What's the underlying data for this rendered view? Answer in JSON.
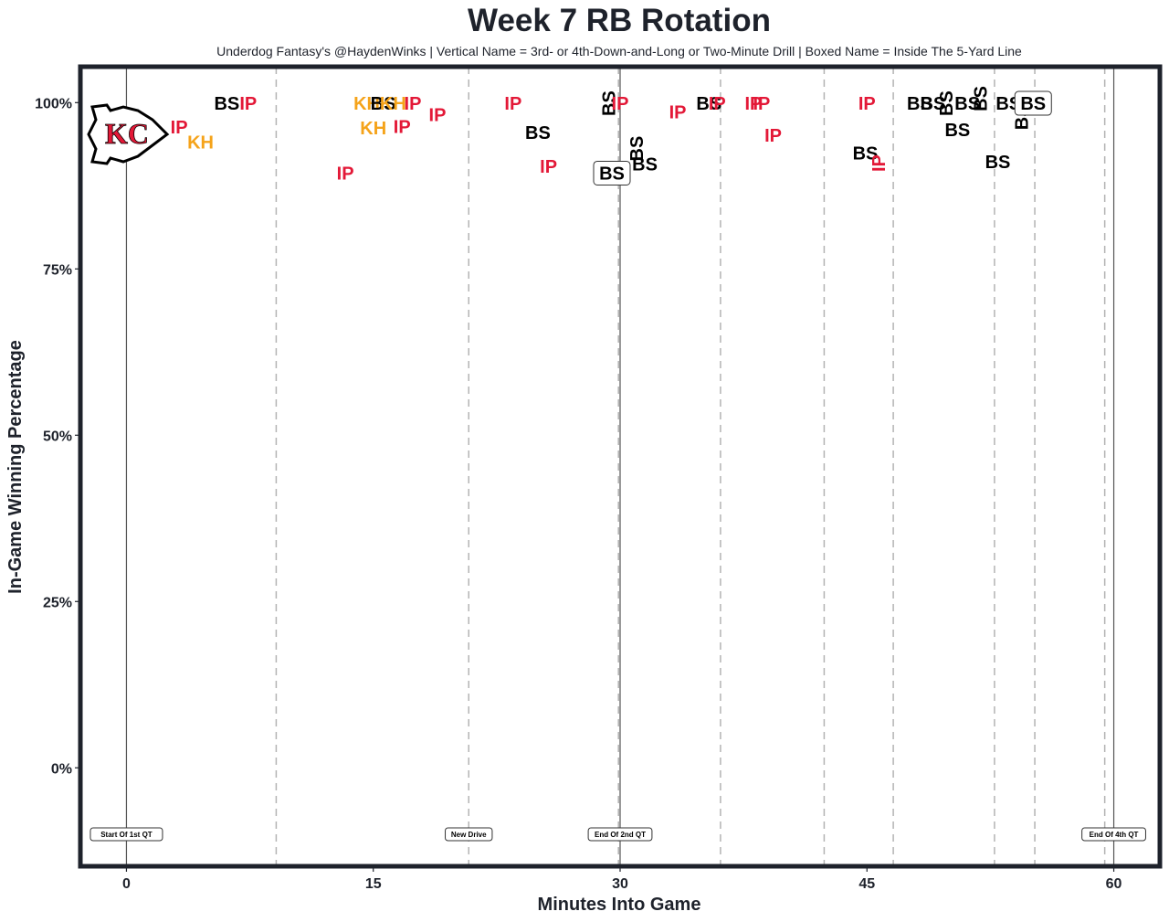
{
  "chart_data": {
    "type": "scatter",
    "title": "Week 7 RB Rotation",
    "subtitle": "Underdog Fantasy's @HaydenWinks | Vertical Name = 3rd- or 4th-Down-and-Long or Two-Minute Drill | Boxed Name = Inside The 5-Yard Line",
    "xlabel": "Minutes Into Game",
    "ylabel": "In-Game Winning Percentage",
    "xlim": [
      -2.8,
      62.8
    ],
    "ylim": [
      -14.8,
      105.4
    ],
    "x_ticks": [
      0,
      15,
      30,
      45,
      60
    ],
    "x_tick_labels": [
      "0",
      "15",
      "30",
      "45",
      "60"
    ],
    "y_ticks": [
      0,
      25,
      50,
      75,
      100
    ],
    "y_tick_labels": [
      "0%",
      "25%",
      "50%",
      "75%",
      "100%"
    ],
    "grid": false,
    "team_logo": "kansas-city-chiefs-logo",
    "player_colors": {
      "BS": "#000000",
      "IP": "#e31837",
      "KH": "#f5a31a"
    },
    "quarter_lines": [
      {
        "x": 0,
        "label": "Start Of 1st QT"
      },
      {
        "x": 30,
        "label": "End Of 2nd QT"
      },
      {
        "x": 60,
        "label": "End Of 4th QT"
      }
    ],
    "drive_lines": [
      {
        "x": 9.1
      },
      {
        "x": 20.8,
        "label": "New Drive"
      },
      {
        "x": 29.9
      },
      {
        "x": 36.1
      },
      {
        "x": 42.4
      },
      {
        "x": 46.6
      },
      {
        "x": 52.75
      },
      {
        "x": 55.2
      },
      {
        "x": 59.45
      }
    ],
    "points": [
      {
        "player": "IP",
        "x": 3.2,
        "y": 96.3,
        "vertical": false,
        "boxed": false
      },
      {
        "player": "KH",
        "x": 4.5,
        "y": 94.1,
        "vertical": false,
        "boxed": false
      },
      {
        "player": "BS",
        "x": 6.1,
        "y": 99.9,
        "vertical": false,
        "boxed": false
      },
      {
        "player": "IP",
        "x": 7.4,
        "y": 99.9,
        "vertical": false,
        "boxed": false
      },
      {
        "player": "IP",
        "x": 13.3,
        "y": 89.4,
        "vertical": false,
        "boxed": false
      },
      {
        "player": "KH",
        "x": 14.6,
        "y": 99.9,
        "vertical": false,
        "boxed": false
      },
      {
        "player": "KH",
        "x": 15.0,
        "y": 96.2,
        "vertical": false,
        "boxed": false
      },
      {
        "player": "BS",
        "x": 15.6,
        "y": 99.9,
        "vertical": false,
        "boxed": false
      },
      {
        "player": "KH",
        "x": 16.2,
        "y": 99.9,
        "vertical": false,
        "boxed": false
      },
      {
        "player": "IP",
        "x": 16.75,
        "y": 96.4,
        "vertical": false,
        "boxed": false
      },
      {
        "player": "IP",
        "x": 17.4,
        "y": 99.9,
        "vertical": false,
        "boxed": false
      },
      {
        "player": "IP",
        "x": 18.9,
        "y": 98.2,
        "vertical": false,
        "boxed": false
      },
      {
        "player": "IP",
        "x": 23.5,
        "y": 99.9,
        "vertical": false,
        "boxed": false
      },
      {
        "player": "BS",
        "x": 25.0,
        "y": 95.5,
        "vertical": false,
        "boxed": false
      },
      {
        "player": "IP",
        "x": 25.65,
        "y": 90.4,
        "vertical": false,
        "boxed": false
      },
      {
        "player": "BS",
        "x": 29.3,
        "y": 99.9,
        "vertical": true,
        "boxed": false
      },
      {
        "player": "BS",
        "x": 29.5,
        "y": 89.4,
        "vertical": false,
        "boxed": true
      },
      {
        "player": "IP",
        "x": 30.0,
        "y": 99.9,
        "vertical": false,
        "boxed": false
      },
      {
        "player": "BS",
        "x": 31.0,
        "y": 93.1,
        "vertical": true,
        "boxed": false
      },
      {
        "player": "BS",
        "x": 31.5,
        "y": 90.8,
        "vertical": false,
        "boxed": false
      },
      {
        "player": "IP",
        "x": 33.5,
        "y": 98.6,
        "vertical": false,
        "boxed": false
      },
      {
        "player": "BS",
        "x": 35.4,
        "y": 99.9,
        "vertical": false,
        "boxed": false
      },
      {
        "player": "IP",
        "x": 35.9,
        "y": 99.9,
        "vertical": false,
        "boxed": false
      },
      {
        "player": "IP",
        "x": 38.1,
        "y": 99.9,
        "vertical": false,
        "boxed": false
      },
      {
        "player": "IP",
        "x": 38.6,
        "y": 99.9,
        "vertical": false,
        "boxed": false
      },
      {
        "player": "IP",
        "x": 39.3,
        "y": 95.1,
        "vertical": false,
        "boxed": false
      },
      {
        "player": "BS",
        "x": 44.9,
        "y": 92.4,
        "vertical": false,
        "boxed": false
      },
      {
        "player": "IP",
        "x": 45.0,
        "y": 99.9,
        "vertical": false,
        "boxed": false
      },
      {
        "player": "IP",
        "x": 45.7,
        "y": 90.9,
        "vertical": true,
        "boxed": false
      },
      {
        "player": "BS",
        "x": 48.2,
        "y": 99.9,
        "vertical": false,
        "boxed": false
      },
      {
        "player": "BS",
        "x": 49.0,
        "y": 99.9,
        "vertical": false,
        "boxed": false
      },
      {
        "player": "BS",
        "x": 49.8,
        "y": 99.9,
        "vertical": true,
        "boxed": false
      },
      {
        "player": "BS",
        "x": 50.5,
        "y": 95.9,
        "vertical": false,
        "boxed": false
      },
      {
        "player": "BS",
        "x": 51.1,
        "y": 99.9,
        "vertical": false,
        "boxed": false
      },
      {
        "player": "BS",
        "x": 51.9,
        "y": 100.6,
        "vertical": true,
        "boxed": false
      },
      {
        "player": "BS",
        "x": 52.95,
        "y": 91.1,
        "vertical": false,
        "boxed": false
      },
      {
        "player": "BS",
        "x": 53.6,
        "y": 99.9,
        "vertical": false,
        "boxed": false
      },
      {
        "player": "BS",
        "x": 54.4,
        "y": 97.8,
        "vertical": true,
        "boxed": false
      },
      {
        "player": "BS",
        "x": 55.1,
        "y": 99.9,
        "vertical": false,
        "boxed": true
      }
    ]
  }
}
